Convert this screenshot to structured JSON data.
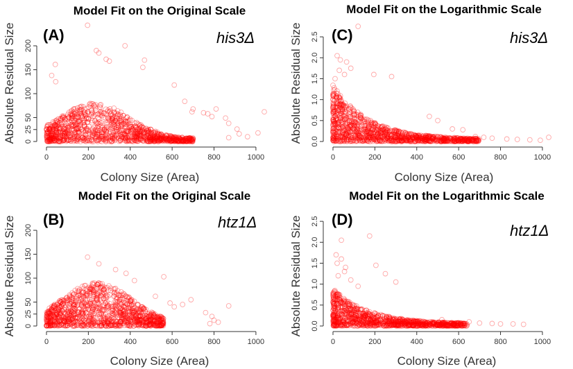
{
  "chart_data": [
    {
      "id": "A",
      "type": "scatter",
      "title": "Model Fit on the Original Scale",
      "panel_label": "(A)",
      "strain": "his3Δ",
      "xlabel": "Colony Size (Area)",
      "ylabel": "Absolute Residual Size",
      "xlim": [
        0,
        1050
      ],
      "ylim": [
        0,
        245
      ],
      "xticks": [
        0,
        200,
        400,
        600,
        800,
        1000
      ],
      "yticks": [
        0,
        25,
        50,
        100,
        150,
        200
      ],
      "ytick_labels": [
        "0",
        "25",
        "50",
        "100",
        "150",
        "200"
      ],
      "marker_color": "#ff0000",
      "dense_band": {
        "x_range": [
          0,
          700
        ],
        "peak_x": 230,
        "peak_y": 75,
        "n": 1300
      },
      "highlight_points": [
        [
          196,
          243
        ],
        [
          238,
          190
        ],
        [
          250,
          185
        ],
        [
          285,
          172
        ],
        [
          300,
          168
        ],
        [
          375,
          200
        ],
        [
          468,
          170
        ],
        [
          460,
          155
        ],
        [
          42,
          161
        ],
        [
          44,
          125
        ],
        [
          25,
          138
        ],
        [
          610,
          118
        ],
        [
          660,
          84
        ],
        [
          700,
          68
        ],
        [
          695,
          62
        ],
        [
          750,
          60
        ],
        [
          770,
          58
        ],
        [
          790,
          52
        ],
        [
          810,
          68
        ],
        [
          855,
          49
        ],
        [
          870,
          38
        ],
        [
          910,
          26
        ],
        [
          920,
          16
        ],
        [
          1010,
          18
        ],
        [
          1040,
          62
        ],
        [
          870,
          8
        ],
        [
          960,
          10
        ]
      ]
    },
    {
      "id": "B",
      "type": "scatter",
      "title": "Model Fit on the Original Scale",
      "panel_label": "(B)",
      "strain": "htz1Δ",
      "xlabel": "Colony Size (Area)",
      "ylabel": "Absolute Residual Size",
      "xlim": [
        0,
        1050
      ],
      "ylim": [
        0,
        245
      ],
      "xticks": [
        0,
        200,
        400,
        600,
        800,
        1000
      ],
      "yticks": [
        0,
        25,
        50,
        100,
        150,
        200
      ],
      "ytick_labels": [
        "0",
        "25",
        "50",
        "100",
        "150",
        "200"
      ],
      "marker_color": "#ff0000",
      "dense_band": {
        "x_range": [
          0,
          560
        ],
        "peak_x": 240,
        "peak_y": 85,
        "n": 1300
      },
      "highlight_points": [
        [
          196,
          144
        ],
        [
          250,
          130
        ],
        [
          330,
          118
        ],
        [
          380,
          110
        ],
        [
          420,
          95
        ],
        [
          560,
          103
        ],
        [
          520,
          62
        ],
        [
          590,
          48
        ],
        [
          610,
          40
        ],
        [
          650,
          45
        ],
        [
          690,
          55
        ],
        [
          760,
          28
        ],
        [
          790,
          20
        ],
        [
          800,
          12
        ],
        [
          870,
          42
        ],
        [
          780,
          5
        ],
        [
          820,
          8
        ]
      ]
    },
    {
      "id": "C",
      "type": "scatter",
      "title": "Model Fit on the Logarithmic Scale",
      "panel_label": "(C)",
      "strain": "his3Δ",
      "xlabel": "Colony Size (Area)",
      "ylabel": "Absolute Residual Size",
      "xlim": [
        0,
        1050
      ],
      "ylim": [
        0,
        2.8
      ],
      "xticks": [
        0,
        200,
        400,
        600,
        800,
        1000
      ],
      "yticks": [
        0.0,
        0.5,
        1.0,
        1.5,
        2.0,
        2.5
      ],
      "ytick_labels": [
        "0.0",
        "0.5",
        "1.0",
        "1.5",
        "2.0",
        "2.5"
      ],
      "marker_color": "#ff0000",
      "dense_band": {
        "x_range": [
          0,
          700
        ],
        "peak_x": 20,
        "peak_y": 1.3,
        "n": 1300
      },
      "highlight_points": [
        [
          120,
          2.75
        ],
        [
          20,
          2.05
        ],
        [
          35,
          1.95
        ],
        [
          65,
          1.9
        ],
        [
          85,
          1.75
        ],
        [
          30,
          1.7
        ],
        [
          55,
          1.6
        ],
        [
          10,
          1.5
        ],
        [
          195,
          1.6
        ],
        [
          280,
          1.55
        ],
        [
          460,
          0.6
        ],
        [
          500,
          0.5
        ],
        [
          570,
          0.3
        ],
        [
          620,
          0.28
        ],
        [
          680,
          0.12
        ],
        [
          720,
          0.1
        ],
        [
          760,
          0.08
        ],
        [
          830,
          0.06
        ],
        [
          880,
          0.05
        ],
        [
          940,
          0.04
        ],
        [
          990,
          0.03
        ],
        [
          1030,
          0.1
        ]
      ]
    },
    {
      "id": "D",
      "type": "scatter",
      "title": "Model Fit on the Logarithmic Scale",
      "panel_label": "(D)",
      "strain": "htz1Δ",
      "xlabel": "Colony Size (Area)",
      "ylabel": "Absolute Residual Size",
      "xlim": [
        0,
        1050
      ],
      "ylim": [
        0,
        2.8
      ],
      "xticks": [
        0,
        200,
        400,
        600,
        800,
        1000
      ],
      "yticks": [
        0.0,
        0.5,
        1.0,
        1.5,
        2.0,
        2.5
      ],
      "ytick_labels": [
        "0.0",
        "0.5",
        "1.0",
        "1.5",
        "2.0",
        "2.5"
      ],
      "marker_color": "#ff0000",
      "dense_band": {
        "x_range": [
          0,
          640
        ],
        "peak_x": 10,
        "peak_y": 0.85,
        "n": 1200
      },
      "highlight_points": [
        [
          40,
          2.05
        ],
        [
          175,
          2.15
        ],
        [
          15,
          1.7
        ],
        [
          40,
          1.6
        ],
        [
          20,
          1.5
        ],
        [
          60,
          1.4
        ],
        [
          55,
          1.3
        ],
        [
          25,
          1.2
        ],
        [
          85,
          1.1
        ],
        [
          205,
          1.45
        ],
        [
          250,
          1.25
        ],
        [
          300,
          1.05
        ],
        [
          120,
          0.95
        ],
        [
          520,
          0.15
        ],
        [
          600,
          0.08
        ],
        [
          650,
          0.1
        ],
        [
          700,
          0.07
        ],
        [
          760,
          0.06
        ],
        [
          800,
          0.05
        ],
        [
          860,
          0.05
        ],
        [
          910,
          0.04
        ]
      ]
    }
  ]
}
